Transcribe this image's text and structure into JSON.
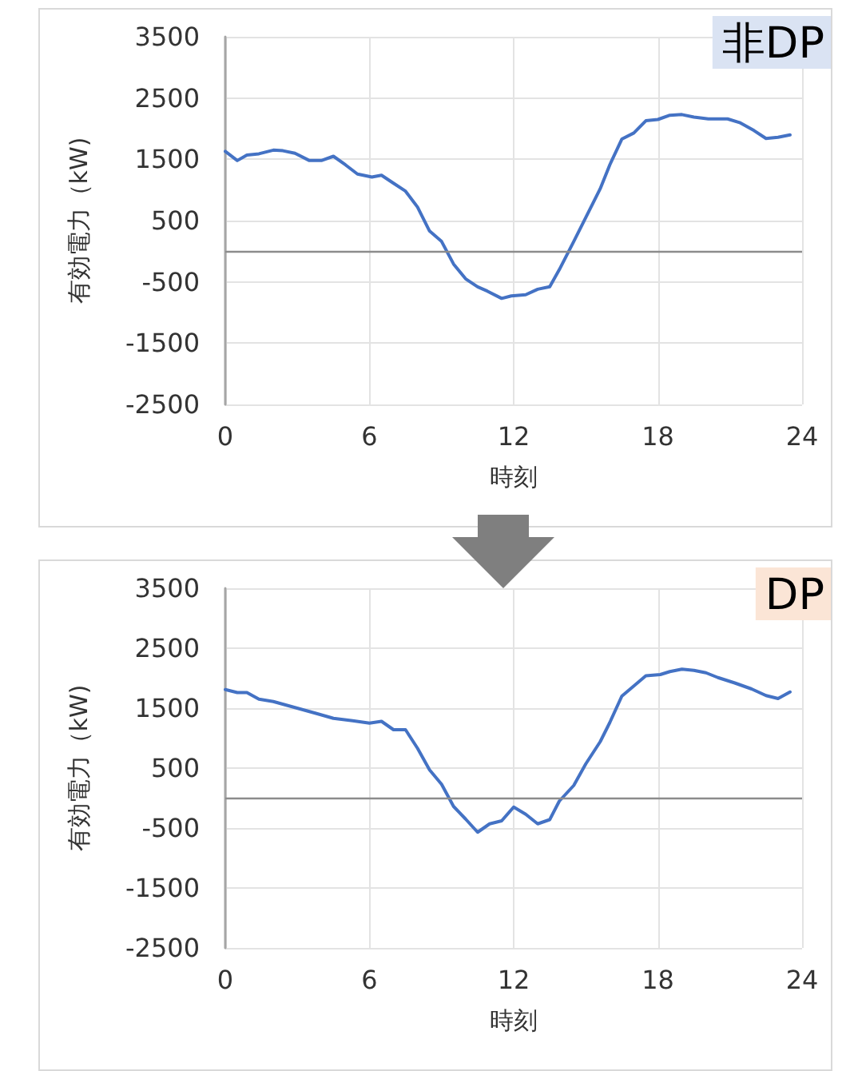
{
  "chart_data": [
    {
      "type": "line",
      "title": "非DP",
      "xlabel": "時刻",
      "ylabel": "有効電力（kW)",
      "xlim": [
        0,
        24
      ],
      "xticks": [
        0,
        6,
        12,
        18,
        24
      ],
      "ylim": [
        -2500,
        3500
      ],
      "yticks": [
        -2500,
        -1500,
        -500,
        500,
        1500,
        2500,
        3500
      ],
      "grid": true,
      "marker": "none",
      "ref_lines": [
        {
          "axis": "y",
          "value": 0,
          "color": "#8c8c8c"
        }
      ],
      "x": [
        0,
        0.5,
        0.9,
        1.4,
        2.0,
        2.4,
        2.9,
        3.5,
        4.0,
        4.5,
        5.0,
        5.5,
        6.1,
        6.5,
        7.0,
        7.5,
        8.0,
        8.5,
        9.0,
        9.5,
        10.0,
        10.5,
        10.9,
        11.5,
        11.9,
        12.5,
        13.0,
        13.5,
        13.9,
        14.5,
        15.0,
        15.6,
        16.0,
        16.5,
        17.0,
        17.5,
        18.0,
        18.5,
        19.0,
        19.5,
        20.1,
        20.9,
        21.4,
        22.0,
        22.5,
        23.0,
        23.5
      ],
      "series": [
        {
          "color": "#4472c4",
          "values": [
            1630,
            1480,
            1570,
            1590,
            1650,
            1640,
            1600,
            1480,
            1480,
            1550,
            1410,
            1260,
            1210,
            1240,
            1110,
            980,
            720,
            330,
            160,
            -210,
            -450,
            -580,
            -650,
            -770,
            -730,
            -710,
            -620,
            -580,
            -300,
            160,
            550,
            1020,
            1410,
            1830,
            1930,
            2130,
            2150,
            2220,
            2230,
            2190,
            2160,
            2160,
            2100,
            1970,
            1840,
            1860,
            1900
          ]
        }
      ]
    },
    {
      "type": "line",
      "title": "DP",
      "xlabel": "時刻",
      "ylabel": "有効電力（kW)",
      "xlim": [
        0,
        24
      ],
      "xticks": [
        0,
        6,
        12,
        18,
        24
      ],
      "ylim": [
        -2500,
        3500
      ],
      "yticks": [
        -2500,
        -1500,
        -500,
        500,
        1500,
        2500,
        3500
      ],
      "grid": true,
      "marker": "none",
      "ref_lines": [
        {
          "axis": "y",
          "value": 0,
          "color": "#8c8c8c"
        }
      ],
      "x": [
        0,
        0.5,
        0.9,
        1.4,
        2.0,
        2.9,
        3.8,
        4.5,
        5.3,
        6.0,
        6.5,
        7.0,
        7.5,
        8.0,
        8.5,
        9.0,
        9.5,
        10.0,
        10.5,
        11.0,
        11.5,
        12.0,
        12.5,
        13.0,
        13.5,
        13.9,
        14.5,
        15.0,
        15.6,
        16.0,
        16.5,
        17.0,
        17.5,
        18.1,
        18.5,
        19.0,
        19.5,
        20.0,
        20.5,
        21.2,
        21.9,
        22.5,
        23.0,
        23.5
      ],
      "series": [
        {
          "color": "#4472c4",
          "values": [
            1810,
            1760,
            1760,
            1650,
            1610,
            1510,
            1410,
            1330,
            1290,
            1250,
            1280,
            1140,
            1140,
            830,
            470,
            230,
            -140,
            -350,
            -570,
            -430,
            -380,
            -150,
            -270,
            -430,
            -360,
            -50,
            210,
            570,
            940,
            1260,
            1700,
            1870,
            2040,
            2060,
            2110,
            2150,
            2130,
            2090,
            2010,
            1920,
            1820,
            1710,
            1660,
            1770
          ]
        }
      ]
    }
  ]
}
